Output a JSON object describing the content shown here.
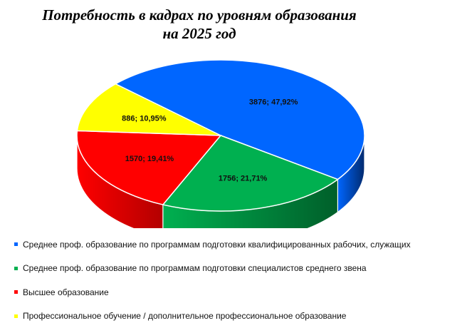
{
  "title_line1": "Потребность  в кадрах по уровням образования",
  "title_line2": "на 2025 год",
  "chart_data": {
    "type": "pie",
    "title": "Потребность  в кадрах по уровням образования на 2025 год",
    "categories": [
      "Среднее проф. образование по программам подготовки квалифицированных рабочих, служащих",
      "Среднее проф. образование по программам подготовки специалистов среднего звена",
      "Высшее образование",
      "Профессиональное обучение / дополнительное профессиональное образование"
    ],
    "values": [
      3876,
      1756,
      1570,
      886
    ],
    "labels": [
      "3876; 47,92%",
      "1756; 21,71%",
      "1570; 19,41%",
      "886; 10,95%"
    ],
    "colors": [
      "#0066ff",
      "#00b050",
      "#ff0000",
      "#ffff00"
    ],
    "side_colors": [
      "#002a6e",
      "#005f2a",
      "#b30000",
      "#b3b300"
    ],
    "legend_position": "bottom",
    "style": "3d"
  }
}
